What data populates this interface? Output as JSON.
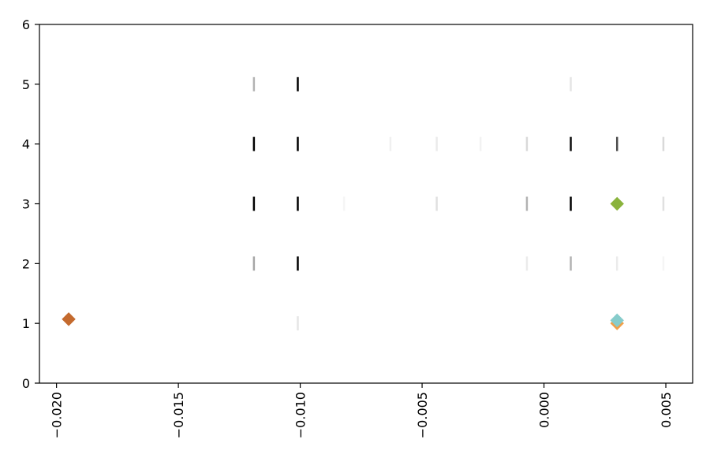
{
  "chart_data": {
    "type": "scatter",
    "title": "",
    "xlabel": "",
    "ylabel": "",
    "xlim": [
      -0.0207,
      0.0061
    ],
    "ylim": [
      0,
      6
    ],
    "grid": false,
    "x_ticks": [
      {
        "value": -0.02,
        "label": "−0.020"
      },
      {
        "value": -0.015,
        "label": "−0.015"
      },
      {
        "value": -0.01,
        "label": "−0.010"
      },
      {
        "value": -0.005,
        "label": "−0.005"
      },
      {
        "value": 0.0,
        "label": "0.000"
      },
      {
        "value": 0.005,
        "label": "0.005"
      }
    ],
    "y_ticks": [
      {
        "value": 0,
        "label": "0"
      },
      {
        "value": 1,
        "label": "1"
      },
      {
        "value": 2,
        "label": "2"
      },
      {
        "value": 3,
        "label": "3"
      },
      {
        "value": 4,
        "label": "4"
      },
      {
        "value": 5,
        "label": "5"
      },
      {
        "value": 6,
        "label": "6"
      }
    ],
    "series": [
      {
        "marker": "vertical-line",
        "color": "#000000",
        "points": [
          {
            "x": -0.0119,
            "y": 5,
            "opacity": 0.3
          },
          {
            "x": -0.0101,
            "y": 5,
            "opacity": 1.0
          },
          {
            "x": 0.0011,
            "y": 5,
            "opacity": 0.1
          },
          {
            "x": -0.0119,
            "y": 4,
            "opacity": 1.0
          },
          {
            "x": -0.0101,
            "y": 4,
            "opacity": 1.0
          },
          {
            "x": -0.0063,
            "y": 4,
            "opacity": 0.06
          },
          {
            "x": -0.0044,
            "y": 4,
            "opacity": 0.08
          },
          {
            "x": -0.0026,
            "y": 4,
            "opacity": 0.05
          },
          {
            "x": -0.0007,
            "y": 4,
            "opacity": 0.15
          },
          {
            "x": 0.0011,
            "y": 4,
            "opacity": 0.95
          },
          {
            "x": 0.003,
            "y": 4,
            "opacity": 0.7
          },
          {
            "x": 0.0049,
            "y": 4,
            "opacity": 0.15
          },
          {
            "x": -0.0119,
            "y": 3,
            "opacity": 1.0
          },
          {
            "x": -0.0101,
            "y": 3,
            "opacity": 1.0
          },
          {
            "x": -0.0082,
            "y": 3,
            "opacity": 0.04
          },
          {
            "x": -0.0044,
            "y": 3,
            "opacity": 0.12
          },
          {
            "x": -0.0007,
            "y": 3,
            "opacity": 0.3
          },
          {
            "x": 0.0011,
            "y": 3,
            "opacity": 1.0
          },
          {
            "x": 0.0049,
            "y": 3,
            "opacity": 0.12
          },
          {
            "x": -0.0119,
            "y": 2,
            "opacity": 0.35
          },
          {
            "x": -0.0101,
            "y": 2,
            "opacity": 1.0
          },
          {
            "x": -0.0007,
            "y": 2,
            "opacity": 0.08
          },
          {
            "x": 0.0011,
            "y": 2,
            "opacity": 0.3
          },
          {
            "x": 0.003,
            "y": 2,
            "opacity": 0.08
          },
          {
            "x": 0.0049,
            "y": 2,
            "opacity": 0.04
          },
          {
            "x": -0.0101,
            "y": 1,
            "opacity": 0.1
          }
        ]
      },
      {
        "marker": "diamond",
        "color": "#c46a2e",
        "points": [
          {
            "x": -0.0195,
            "y": 1.07
          }
        ]
      },
      {
        "marker": "diamond",
        "color": "#f0a04a",
        "points": [
          {
            "x": 0.003,
            "y": 1.0
          }
        ]
      },
      {
        "marker": "diamond",
        "color": "#8ab33c",
        "points": [
          {
            "x": 0.003,
            "y": 3.0
          }
        ]
      },
      {
        "marker": "diamond",
        "color": "#86cccb",
        "points": [
          {
            "x": 0.003,
            "y": 1.05
          }
        ]
      }
    ]
  }
}
